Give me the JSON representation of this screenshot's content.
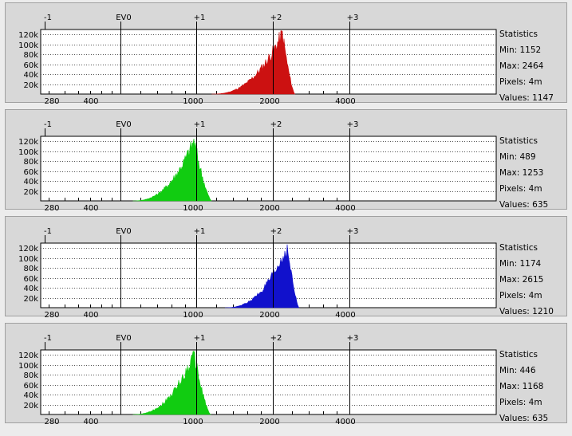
{
  "ev_labels": [
    "-1",
    "EV0",
    "+1",
    "+2",
    "+3"
  ],
  "x_labels": [
    "280",
    "400",
    "1000",
    "2000",
    "4000"
  ],
  "y_labels": [
    "120k",
    "100k",
    "80k",
    "60k",
    "40k",
    "20k"
  ],
  "panels": [
    {
      "channel": "red",
      "color": "#cc1111",
      "stats": {
        "title": "Statistics",
        "min": "Min: 1152",
        "max": "Max: 2464",
        "pixels": "Pixels: 4m",
        "values": "Values: 1147"
      },
      "hist": {
        "start": 1152,
        "peak": 2200,
        "end": 2464,
        "peak_count": 125000
      }
    },
    {
      "channel": "green",
      "color": "#11cc11",
      "stats": {
        "title": "Statistics",
        "min": "Min: 489",
        "max": "Max: 1253",
        "pixels": "Pixels: 4m",
        "values": "Values: 635"
      },
      "hist": {
        "start": 560,
        "peak": 980,
        "end": 1150,
        "peak_count": 125000
      }
    },
    {
      "channel": "blue",
      "color": "#1111cc",
      "stats": {
        "title": "Statistics",
        "min": "Min: 1174",
        "max": "Max: 2615",
        "pixels": "Pixels: 4m",
        "values": "Values: 1210"
      },
      "hist": {
        "start": 1300,
        "peak": 2300,
        "end": 2560,
        "peak_count": 125000
      }
    },
    {
      "channel": "green",
      "color": "#11cc11",
      "stats": {
        "title": "Statistics",
        "min": "Min: 446",
        "max": "Max: 1168",
        "pixels": "Pixels: 4m",
        "values": "Values: 635"
      },
      "hist": {
        "start": 560,
        "peak": 980,
        "end": 1140,
        "peak_count": 125000
      }
    }
  ]
}
